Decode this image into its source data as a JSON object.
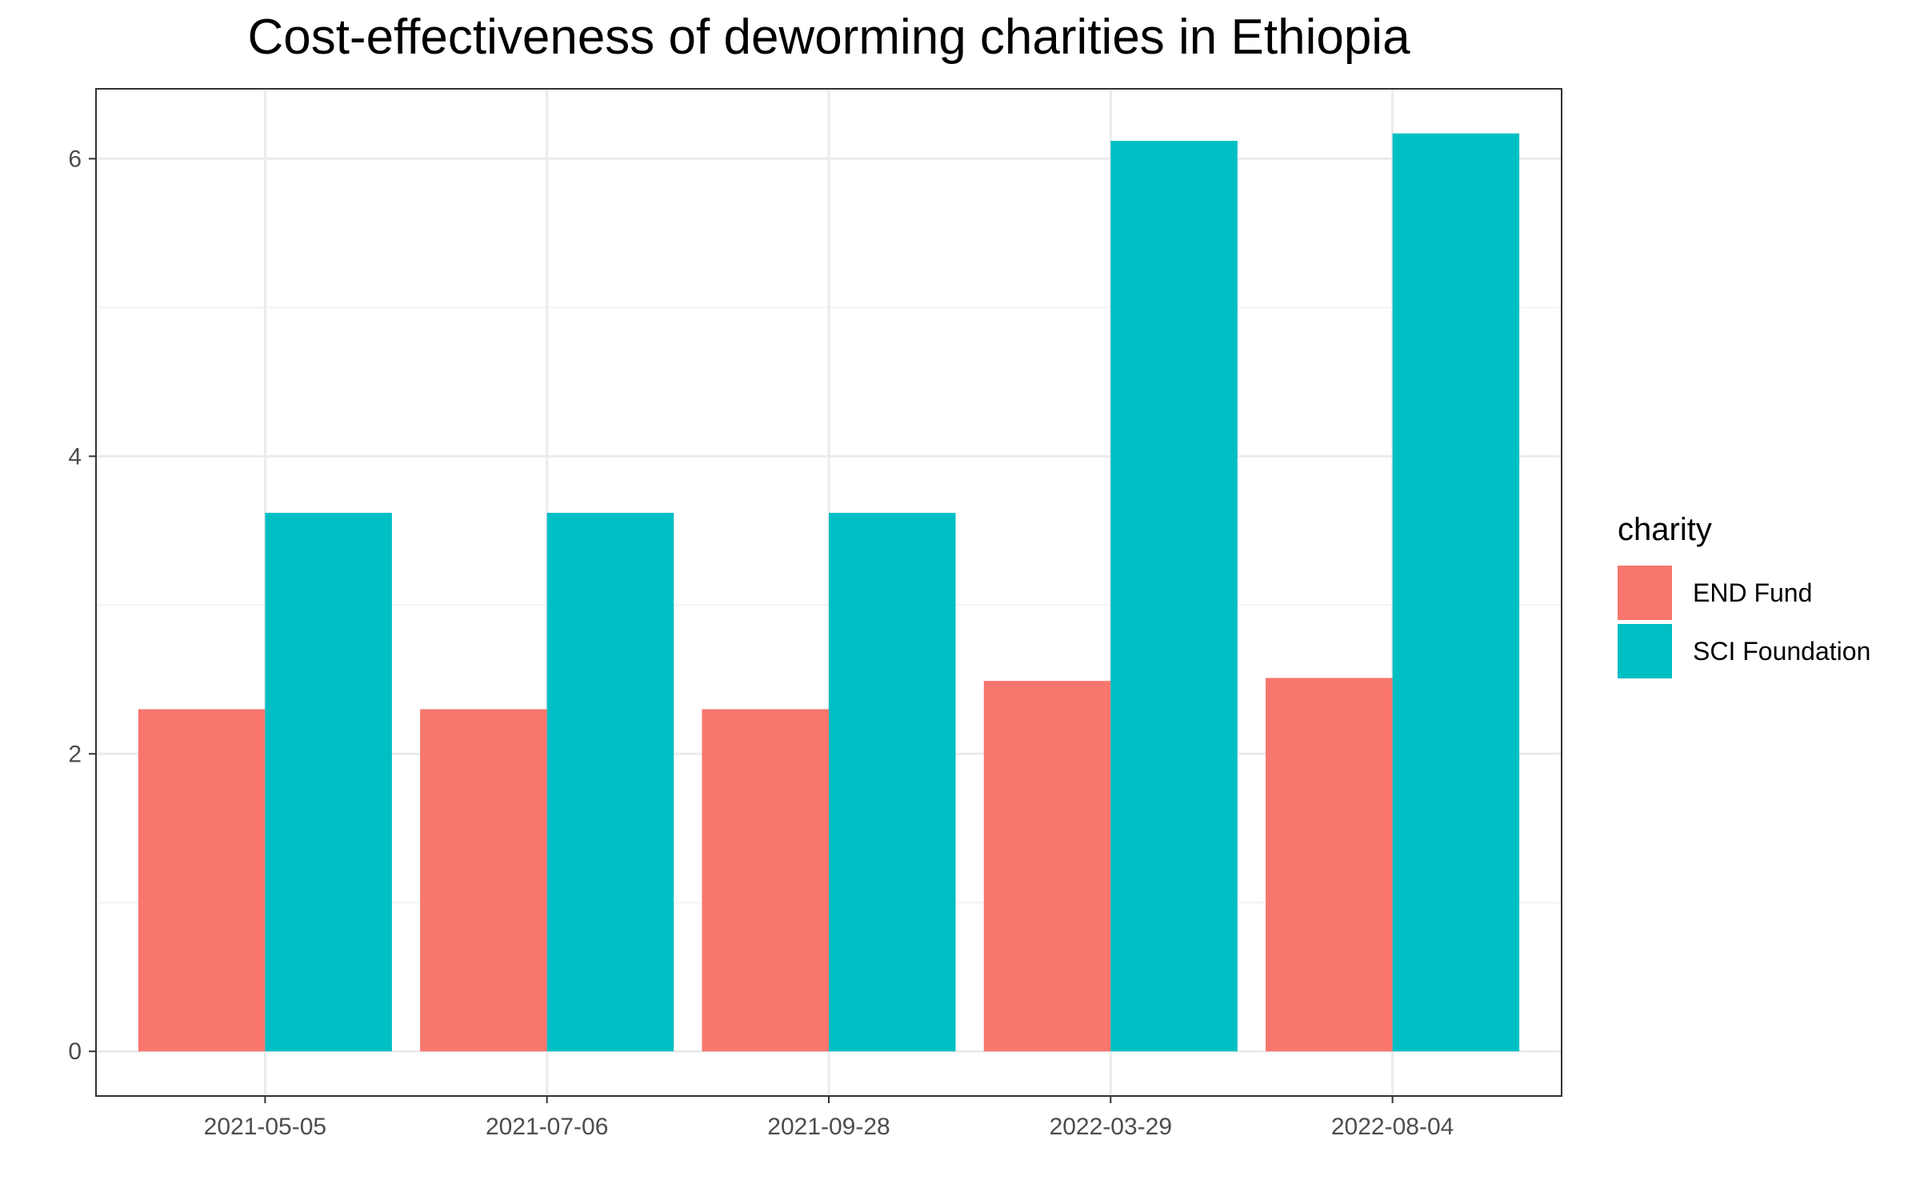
{
  "chart_data": {
    "type": "bar",
    "title": "Cost-effectiveness of deworming charities in Ethiopia",
    "xlabel": "",
    "ylabel": "",
    "categories": [
      "2021-05-05",
      "2021-07-06",
      "2021-09-28",
      "2022-03-29",
      "2022-08-04"
    ],
    "series": [
      {
        "name": "END Fund",
        "values": [
          2.3,
          2.3,
          2.3,
          2.49,
          2.51
        ],
        "color": "#F8766D"
      },
      {
        "name": "SCI Foundation",
        "values": [
          3.62,
          3.62,
          3.62,
          6.12,
          6.17
        ],
        "color": "#00BFC4"
      }
    ],
    "ylim": [
      -0.3,
      6.47
    ],
    "yticks": [
      0,
      2,
      4,
      6
    ],
    "grid": true,
    "legend": {
      "title": "charity",
      "position": "right"
    },
    "theme": {
      "background": "#ffffff",
      "grid_major": "#ebebeb",
      "grid_minor": "#f3f3f3",
      "panel_border": "#333333",
      "tick_color": "#333333"
    }
  }
}
